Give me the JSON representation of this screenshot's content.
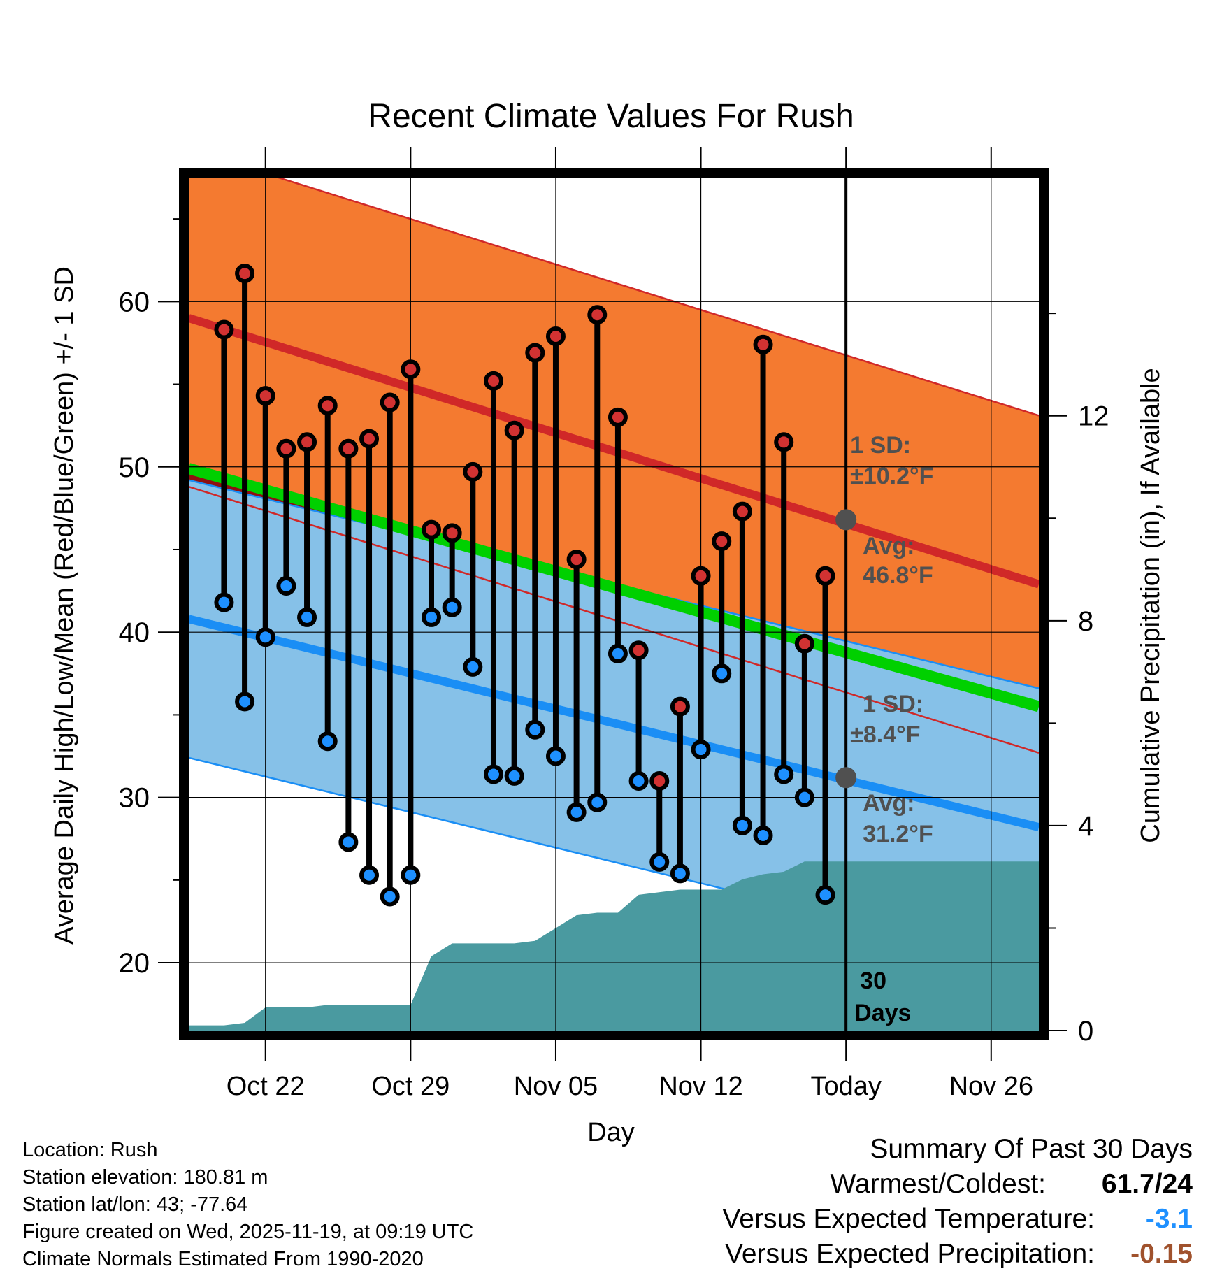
{
  "chart_data": {
    "type": "range-bar-with-normals",
    "title": "Recent Climate Values For Rush",
    "xlabel": "Day",
    "ylabel": "Average Daily High/Low/Mean (Red/Blue/Green) +/- 1 SD",
    "y2label": "Cumulative Precipitation (in), If Available",
    "ylim": [
      15.9,
      67.5
    ],
    "y_ticks": [
      "20",
      "30",
      "40",
      "50",
      "60"
    ],
    "y2lim": [
      0,
      16.65
    ],
    "y2_ticks": [
      "0",
      "4",
      "8",
      "12"
    ],
    "xlim": [
      18.3,
      59.3
    ],
    "x_ticks": [
      {
        "day": 22,
        "label": "Oct 22"
      },
      {
        "day": 29,
        "label": "Oct 29"
      },
      {
        "day": 36,
        "label": "Nov 05"
      },
      {
        "day": 43,
        "label": "Nov 12"
      },
      {
        "day": 50,
        "label": "Today"
      },
      {
        "day": 57,
        "label": "Nov 26"
      }
    ],
    "today_day": 50,
    "days_label": "30 Days",
    "normal_high": {
      "start": 59.0,
      "end": 42.9,
      "sd": 10.2
    },
    "normal_low": {
      "start": 40.8,
      "end": 28.2,
      "sd": 8.4
    },
    "normal_mean": {
      "start": 49.9,
      "end": 35.5
    },
    "high_annotation": {
      "sd_title": "1 SD:",
      "sd_value": "±10.2°F",
      "avg_title": "Avg:",
      "avg_value": "46.8°F",
      "avg": 46.8
    },
    "low_annotation": {
      "sd_title": "1 SD:",
      "sd_value": "±8.4°F",
      "avg_title": "Avg:",
      "avg_value": "31.2°F",
      "avg": 31.2
    },
    "daily_obs": [
      {
        "day": 20,
        "high": 58.3,
        "low": 41.8
      },
      {
        "day": 21,
        "high": 61.7,
        "low": 35.8
      },
      {
        "day": 22,
        "high": 54.3,
        "low": 39.7
      },
      {
        "day": 23,
        "high": 51.1,
        "low": 42.8
      },
      {
        "day": 24,
        "high": 51.5,
        "low": 40.9
      },
      {
        "day": 25,
        "high": 53.7,
        "low": 33.4
      },
      {
        "day": 26,
        "high": 51.1,
        "low": 27.3
      },
      {
        "day": 27,
        "high": 51.7,
        "low": 25.3
      },
      {
        "day": 28,
        "high": 53.9,
        "low": 24.0
      },
      {
        "day": 29,
        "high": 55.9,
        "low": 25.3
      },
      {
        "day": 30,
        "high": 46.2,
        "low": 40.9
      },
      {
        "day": 31,
        "high": 46.0,
        "low": 41.5
      },
      {
        "day": 32,
        "high": 49.7,
        "low": 37.9
      },
      {
        "day": 33,
        "high": 55.2,
        "low": 31.4
      },
      {
        "day": 34,
        "high": 52.2,
        "low": 31.3
      },
      {
        "day": 35,
        "high": 56.9,
        "low": 34.1
      },
      {
        "day": 36,
        "high": 57.9,
        "low": 32.5
      },
      {
        "day": 37,
        "high": 44.4,
        "low": 29.1
      },
      {
        "day": 38,
        "high": 59.2,
        "low": 29.7
      },
      {
        "day": 39,
        "high": 53.0,
        "low": 38.7
      },
      {
        "day": 40,
        "high": 38.9,
        "low": 31.0
      },
      {
        "day": 41,
        "high": 31.0,
        "low": 26.1
      },
      {
        "day": 42,
        "high": 35.5,
        "low": 25.4
      },
      {
        "day": 43,
        "high": 43.4,
        "low": 32.9
      },
      {
        "day": 44,
        "high": 45.5,
        "low": 37.5
      },
      {
        "day": 45,
        "high": 47.3,
        "low": 28.3
      },
      {
        "day": 46,
        "high": 57.4,
        "low": 27.7
      },
      {
        "day": 47,
        "high": 51.5,
        "low": 31.4
      },
      {
        "day": 48,
        "high": 39.3,
        "low": 30.0
      },
      {
        "day": 49,
        "high": 43.4,
        "low": 24.1
      }
    ],
    "cumulative_precip": [
      {
        "day": 18.3,
        "in": 0.1
      },
      {
        "day": 20,
        "in": 0.1
      },
      {
        "day": 21,
        "in": 0.15
      },
      {
        "day": 22,
        "in": 0.45
      },
      {
        "day": 24,
        "in": 0.45
      },
      {
        "day": 25,
        "in": 0.5
      },
      {
        "day": 29,
        "in": 0.5
      },
      {
        "day": 30,
        "in": 1.45
      },
      {
        "day": 31,
        "in": 1.7
      },
      {
        "day": 34,
        "in": 1.7
      },
      {
        "day": 35,
        "in": 1.75
      },
      {
        "day": 36,
        "in": 2.0
      },
      {
        "day": 37,
        "in": 2.25
      },
      {
        "day": 38,
        "in": 2.3
      },
      {
        "day": 39,
        "in": 2.3
      },
      {
        "day": 40,
        "in": 2.65
      },
      {
        "day": 42,
        "in": 2.75
      },
      {
        "day": 44,
        "in": 2.75
      },
      {
        "day": 45,
        "in": 2.95
      },
      {
        "day": 46,
        "in": 3.05
      },
      {
        "day": 47,
        "in": 3.1
      },
      {
        "day": 48,
        "in": 3.3
      },
      {
        "day": 49,
        "in": 3.3
      },
      {
        "day": 59.3,
        "in": 3.3
      }
    ],
    "colors": {
      "high_band": "#f47a30",
      "high_line": "#d02828",
      "low_band": "#86c1e8",
      "low_line": "#1a8ef5",
      "mean_line": "#00d000",
      "overlap": "#8e1010",
      "precip": "#4a9aa0",
      "high_marker": "#d23232",
      "low_marker": "#1e90ff",
      "annotation": "#505050",
      "temp_anomaly": "#1e90ff",
      "precip_anomaly": "#a0522d"
    }
  },
  "footer": {
    "location": "Location: Rush",
    "elevation": "Station elevation: 180.81 m",
    "latlon": "Station lat/lon: 43; -77.64",
    "created": "Figure created on Wed, 2025-11-19, at 09:19 UTC",
    "normals": "Climate Normals Estimated From 1990-2020"
  },
  "summary": {
    "title": "Summary Of Past 30 Days",
    "warmest_coldest_label": "Warmest/Coldest:",
    "warmest_coldest_value": "61.7/24",
    "temp_label": "Versus Expected Temperature:",
    "temp_value": "-3.1",
    "precip_label": "Versus Expected Precipitation:",
    "precip_value": "-0.15"
  }
}
